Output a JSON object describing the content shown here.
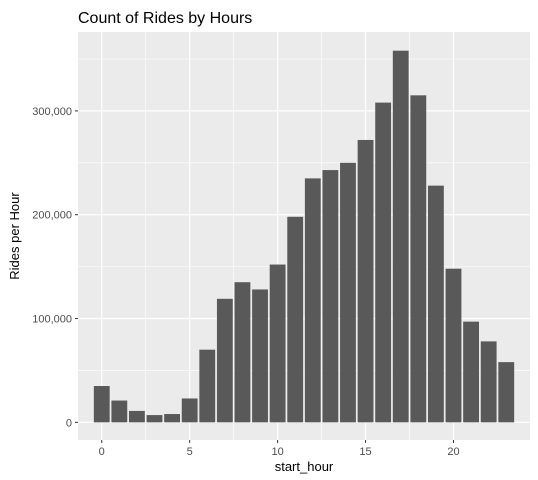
{
  "chart_data": {
    "type": "bar",
    "title": "Count of Rides by Hours",
    "xlabel": "start_hour",
    "ylabel": "Rides per Hour",
    "x": [
      0,
      1,
      2,
      3,
      4,
      5,
      6,
      7,
      8,
      9,
      10,
      11,
      12,
      13,
      14,
      15,
      16,
      17,
      18,
      19,
      20,
      21,
      22,
      23
    ],
    "values": [
      35000,
      21000,
      11000,
      7000,
      8000,
      23000,
      70000,
      119000,
      135000,
      128000,
      152000,
      198000,
      235000,
      243000,
      250000,
      272000,
      308000,
      358000,
      315000,
      228000,
      148000,
      97000,
      78000,
      58000
    ],
    "xlim": [
      -1.35,
      24.35
    ],
    "ylim": [
      -17000,
      376000
    ],
    "x_ticks": [
      0,
      5,
      10,
      15,
      20
    ],
    "x_tick_labels": [
      "0",
      "5",
      "10",
      "15",
      "20"
    ],
    "y_ticks": [
      0,
      100000,
      200000,
      300000
    ],
    "y_tick_labels": [
      "0",
      "100,000",
      "200,000",
      "300,000"
    ],
    "grid": true,
    "bar_color": "#595959",
    "panel_background": "#ebebeb",
    "grid_color": "#ffffff"
  }
}
